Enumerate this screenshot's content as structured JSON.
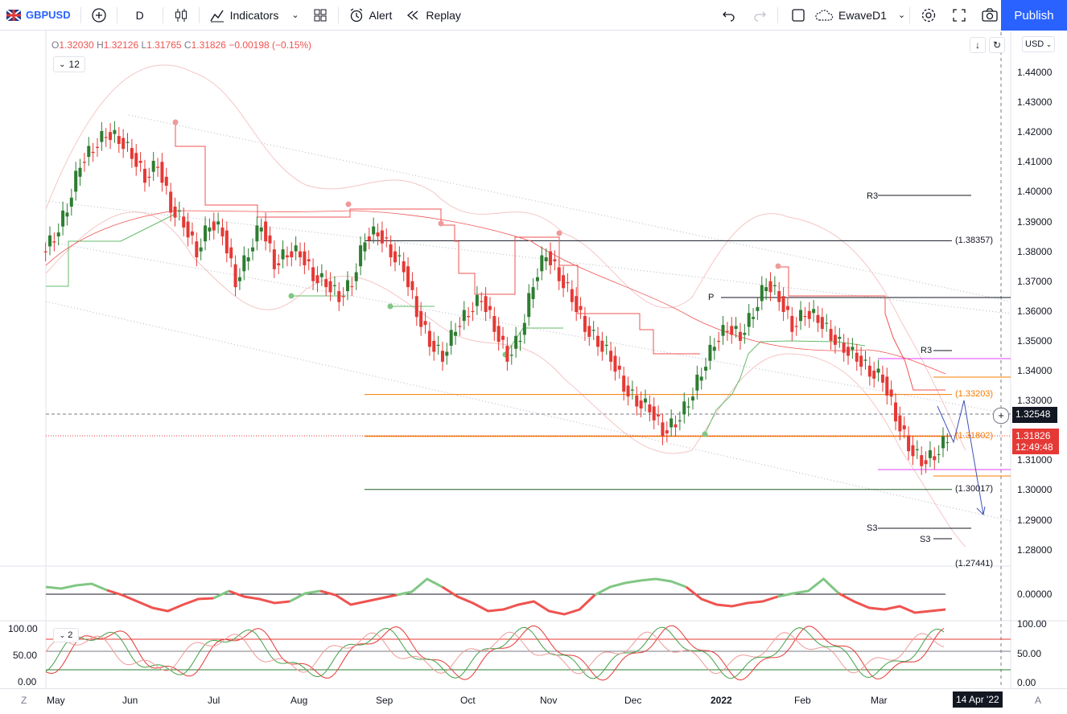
{
  "toolbar": {
    "symbol": "GBPUSD",
    "interval": "D",
    "indicators": "Indicators",
    "alert": "Alert",
    "replay": "Replay",
    "layout_name": "EwaveD1",
    "publish": "Publish"
  },
  "legend": {
    "o_label": "O",
    "o": "1.32030",
    "h_label": "H",
    "h": "1.32126",
    "l_label": "L",
    "l": "1.31765",
    "c_label": "C",
    "c": "1.31826",
    "change": "−0.00198 (−0.15%)",
    "indicator_count": "12"
  },
  "currency": "USD",
  "price_axis": [
    "1.44000",
    "1.43000",
    "1.42000",
    "1.41000",
    "1.40000",
    "1.39000",
    "1.38000",
    "1.37000",
    "1.36000",
    "1.35000",
    "1.34000",
    "1.33000",
    "1.31000",
    "1.30000",
    "1.29000",
    "1.28000"
  ],
  "current_price": {
    "crosshair": "1.32548",
    "last": "1.31826",
    "countdown": "12:49:48"
  },
  "levels": {
    "l1": "(1.38357)",
    "l2": "(1.33203)",
    "l3": "(1.31802)",
    "l4": "(1.30017)",
    "l5": "(1.27441)"
  },
  "level_tags": {
    "r3a": "R3",
    "r3b": "R3",
    "p": "P",
    "s3a": "S3",
    "s3b": "S3"
  },
  "osc1_axis": "0.00000",
  "osc2_axis": [
    "100.00",
    "50.00",
    "0.00"
  ],
  "osc2_left_axis": [
    "100.00",
    "50.00",
    "0.00"
  ],
  "osc2_count": "2",
  "time_axis": [
    "May",
    "Jun",
    "Jul",
    "Aug",
    "Sep",
    "Oct",
    "Nov",
    "Dec",
    "2022",
    "Feb",
    "Mar"
  ],
  "time_tag": "14 Apr '22",
  "corner_left": "Z",
  "corner_right": "A",
  "colors": {
    "up": "#2e7d32",
    "down": "#e53935",
    "accent": "#2962ff",
    "osc_up": "#81c784",
    "osc_down": "#ef5350"
  },
  "chart_data": {
    "type": "candlestick",
    "title": "GBPUSD",
    "price_range": [
      1.27,
      1.445
    ],
    "closes_approx": [
      1.385,
      1.395,
      1.41,
      1.415,
      1.42,
      1.418,
      1.413,
      1.405,
      1.41,
      1.395,
      1.39,
      1.38,
      1.39,
      1.387,
      1.37,
      1.38,
      1.39,
      1.376,
      1.38,
      1.38,
      1.372,
      1.37,
      1.365,
      1.37,
      1.385,
      1.387,
      1.38,
      1.375,
      1.36,
      1.35,
      1.345,
      1.355,
      1.36,
      1.365,
      1.355,
      1.345,
      1.352,
      1.37,
      1.38,
      1.372,
      1.365,
      1.355,
      1.35,
      1.345,
      1.335,
      1.33,
      1.328,
      1.32,
      1.323,
      1.33,
      1.34,
      1.35,
      1.355,
      1.352,
      1.36,
      1.37,
      1.365,
      1.355,
      1.36,
      1.358,
      1.352,
      1.348,
      1.345,
      1.34,
      1.338,
      1.325,
      1.315,
      1.31,
      1.312,
      1.318
    ]
  }
}
